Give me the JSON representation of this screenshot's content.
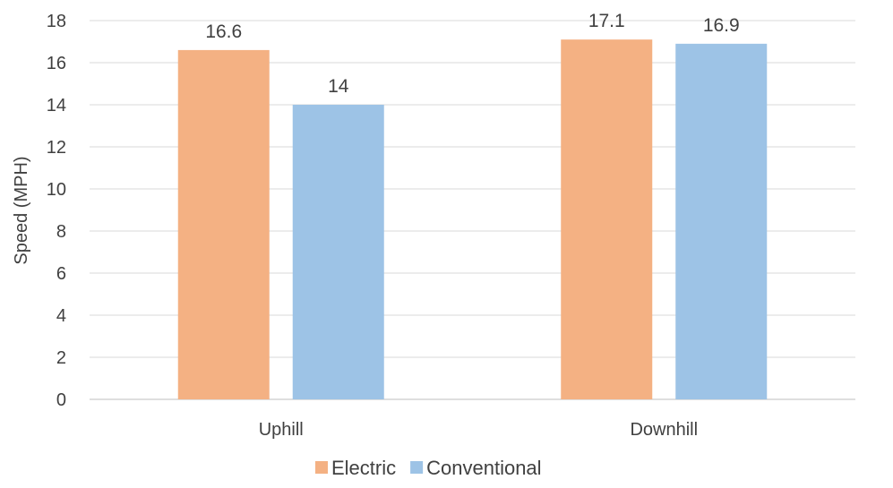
{
  "chart_data": {
    "type": "bar",
    "title": "",
    "xlabel": "",
    "ylabel": "Speed (MPH)",
    "categories": [
      "Uphill",
      "Downhill"
    ],
    "series": [
      {
        "name": "Electric",
        "values": [
          16.6,
          17.1
        ],
        "color": "#f4b183"
      },
      {
        "name": "Conventional",
        "values": [
          14,
          16.9
        ],
        "color": "#9dc3e6"
      }
    ],
    "ylim": [
      0,
      18
    ],
    "yticks": [
      0,
      2,
      4,
      6,
      8,
      10,
      12,
      14,
      16,
      18
    ],
    "grid": true,
    "legend_position": "bottom",
    "data_labels": true
  }
}
